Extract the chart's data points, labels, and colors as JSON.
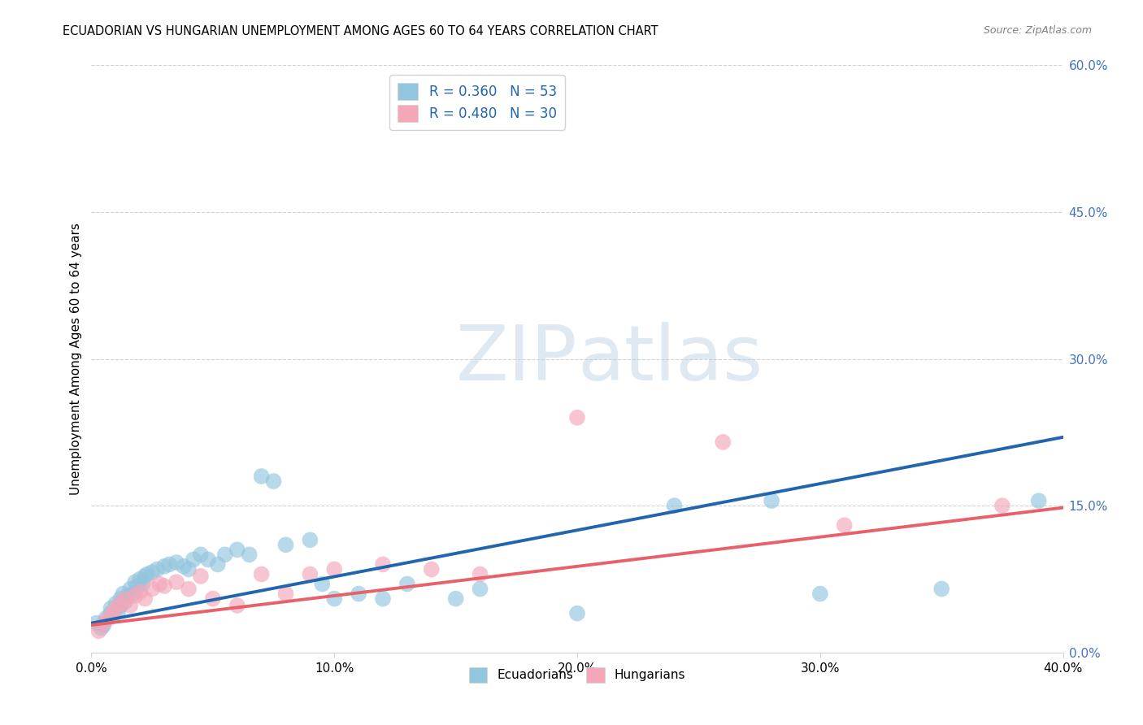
{
  "title": "ECUADORIAN VS HUNGARIAN UNEMPLOYMENT AMONG AGES 60 TO 64 YEARS CORRELATION CHART",
  "source": "Source: ZipAtlas.com",
  "ylabel": "Unemployment Among Ages 60 to 64 years",
  "xlabel_ticks": [
    "0.0%",
    "10.0%",
    "20.0%",
    "30.0%",
    "40.0%"
  ],
  "xlabel_vals": [
    0.0,
    0.1,
    0.2,
    0.3,
    0.4
  ],
  "ylabel_ticks_right": [
    "60.0%",
    "45.0%",
    "30.0%",
    "15.0%",
    "0.0%"
  ],
  "ylabel_vals_right": [
    0.6,
    0.45,
    0.3,
    0.15,
    0.0
  ],
  "ylabel_tick_labels_display": [
    "60.0%",
    "45.0%",
    "30.0%",
    "15.0%",
    "0.0%"
  ],
  "xlim": [
    0.0,
    0.4
  ],
  "ylim": [
    0.0,
    0.6
  ],
  "blue_R": 0.36,
  "blue_N": 53,
  "pink_R": 0.48,
  "pink_N": 30,
  "blue_color": "#92c5de",
  "pink_color": "#f4a7b9",
  "blue_line_color": "#2166ac",
  "pink_line_color": "#e8606a",
  "watermark_color": "#c5d8e8",
  "blue_scatter_x": [
    0.002,
    0.004,
    0.005,
    0.006,
    0.008,
    0.008,
    0.009,
    0.01,
    0.011,
    0.012,
    0.012,
    0.013,
    0.014,
    0.015,
    0.016,
    0.017,
    0.018,
    0.019,
    0.02,
    0.021,
    0.022,
    0.023,
    0.025,
    0.027,
    0.03,
    0.032,
    0.035,
    0.038,
    0.04,
    0.042,
    0.045,
    0.048,
    0.052,
    0.055,
    0.06,
    0.065,
    0.07,
    0.075,
    0.08,
    0.09,
    0.095,
    0.1,
    0.11,
    0.12,
    0.13,
    0.15,
    0.16,
    0.2,
    0.24,
    0.28,
    0.3,
    0.35,
    0.39
  ],
  "blue_scatter_y": [
    0.03,
    0.025,
    0.028,
    0.035,
    0.04,
    0.045,
    0.038,
    0.05,
    0.042,
    0.055,
    0.048,
    0.06,
    0.052,
    0.058,
    0.065,
    0.06,
    0.072,
    0.068,
    0.075,
    0.07,
    0.078,
    0.08,
    0.082,
    0.085,
    0.088,
    0.09,
    0.092,
    0.088,
    0.085,
    0.095,
    0.1,
    0.095,
    0.09,
    0.1,
    0.105,
    0.1,
    0.18,
    0.175,
    0.11,
    0.115,
    0.07,
    0.055,
    0.06,
    0.055,
    0.07,
    0.055,
    0.065,
    0.04,
    0.15,
    0.155,
    0.06,
    0.065,
    0.155
  ],
  "pink_scatter_x": [
    0.003,
    0.005,
    0.007,
    0.009,
    0.01,
    0.012,
    0.014,
    0.016,
    0.018,
    0.02,
    0.022,
    0.025,
    0.028,
    0.03,
    0.035,
    0.04,
    0.045,
    0.05,
    0.06,
    0.07,
    0.08,
    0.09,
    0.1,
    0.12,
    0.14,
    0.16,
    0.2,
    0.26,
    0.31,
    0.375
  ],
  "pink_scatter_y": [
    0.022,
    0.03,
    0.035,
    0.04,
    0.045,
    0.05,
    0.055,
    0.048,
    0.058,
    0.062,
    0.055,
    0.065,
    0.07,
    0.068,
    0.072,
    0.065,
    0.078,
    0.055,
    0.048,
    0.08,
    0.06,
    0.08,
    0.085,
    0.09,
    0.085,
    0.08,
    0.24,
    0.215,
    0.13,
    0.15
  ],
  "blue_line_start_y": 0.03,
  "blue_line_end_y": 0.22,
  "pink_line_start_y": 0.028,
  "pink_line_end_y": 0.148
}
